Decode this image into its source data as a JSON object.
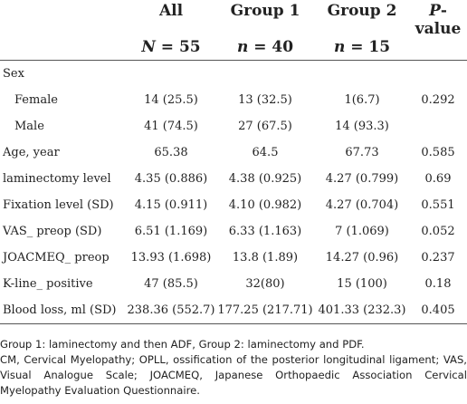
{
  "header": {
    "row1": [
      "",
      "All",
      "Group 1",
      "Group 2",
      "P-value"
    ],
    "row2": {
      "all": {
        "var": "N",
        "eq": " = 55"
      },
      "g1": {
        "var": "n",
        "eq": " = 40"
      },
      "g2": {
        "var": "n",
        "eq": " = 15"
      }
    },
    "pvalue_p": "P",
    "pvalue_rest": "-value"
  },
  "rows": [
    {
      "label": "Sex",
      "indent": false,
      "all": "",
      "g1": "",
      "g2": "",
      "p": ""
    },
    {
      "label": "Female",
      "indent": true,
      "all": "14 (25.5)",
      "g1": "13 (32.5)",
      "g2": "1(6.7)",
      "p": "0.292"
    },
    {
      "label": "Male",
      "indent": true,
      "all": "41 (74.5)",
      "g1": "27 (67.5)",
      "g2": "14 (93.3)",
      "p": ""
    },
    {
      "label": "Age, year",
      "indent": false,
      "all": "65.38",
      "g1": "64.5",
      "g2": "67.73",
      "p": "0.585"
    },
    {
      "label": "laminectomy level",
      "indent": false,
      "all": "4.35 (0.886)",
      "g1": "4.38 (0.925)",
      "g2": "4.27 (0.799)",
      "p": "0.69"
    },
    {
      "label": "Fixation level (SD)",
      "indent": false,
      "all": "4.15 (0.911)",
      "g1": "4.10 (0.982)",
      "g2": "4.27 (0.704)",
      "p": "0.551"
    },
    {
      "label": "VAS_ preop (SD)",
      "indent": false,
      "all": "6.51 (1.169)",
      "g1": "6.33 (1.163)",
      "g2": "7 (1.069)",
      "p": "0.052"
    },
    {
      "label": "JOACMEQ_ preop",
      "indent": false,
      "all": "13.93 (1.698)",
      "g1": "13.8 (1.89)",
      "g2": "14.27 (0.96)",
      "p": "0.237"
    },
    {
      "label": "K-line_ positive",
      "indent": false,
      "all": "47 (85.5)",
      "g1": "32(80)",
      "g2": "15 (100)",
      "p": "0.18"
    },
    {
      "label": "Blood loss, ml (SD)",
      "indent": false,
      "all": "238.36 (552.7)",
      "g1": "177.25 (217.71)",
      "g2": "401.33 (232.3)",
      "p": "0.405"
    }
  ],
  "footnote": {
    "line1": "Group 1: laminectomy and then ADF, Group 2: laminectomy and PDF.",
    "line2": "CM, Cervical Myelopathy; OPLL, ossification of the posterior longitudinal ligament; VAS, Visual Analogue Scale; JOACMEQ, Japanese Orthopaedic Association Cervical Myelopathy Evaluation Questionnaire."
  }
}
